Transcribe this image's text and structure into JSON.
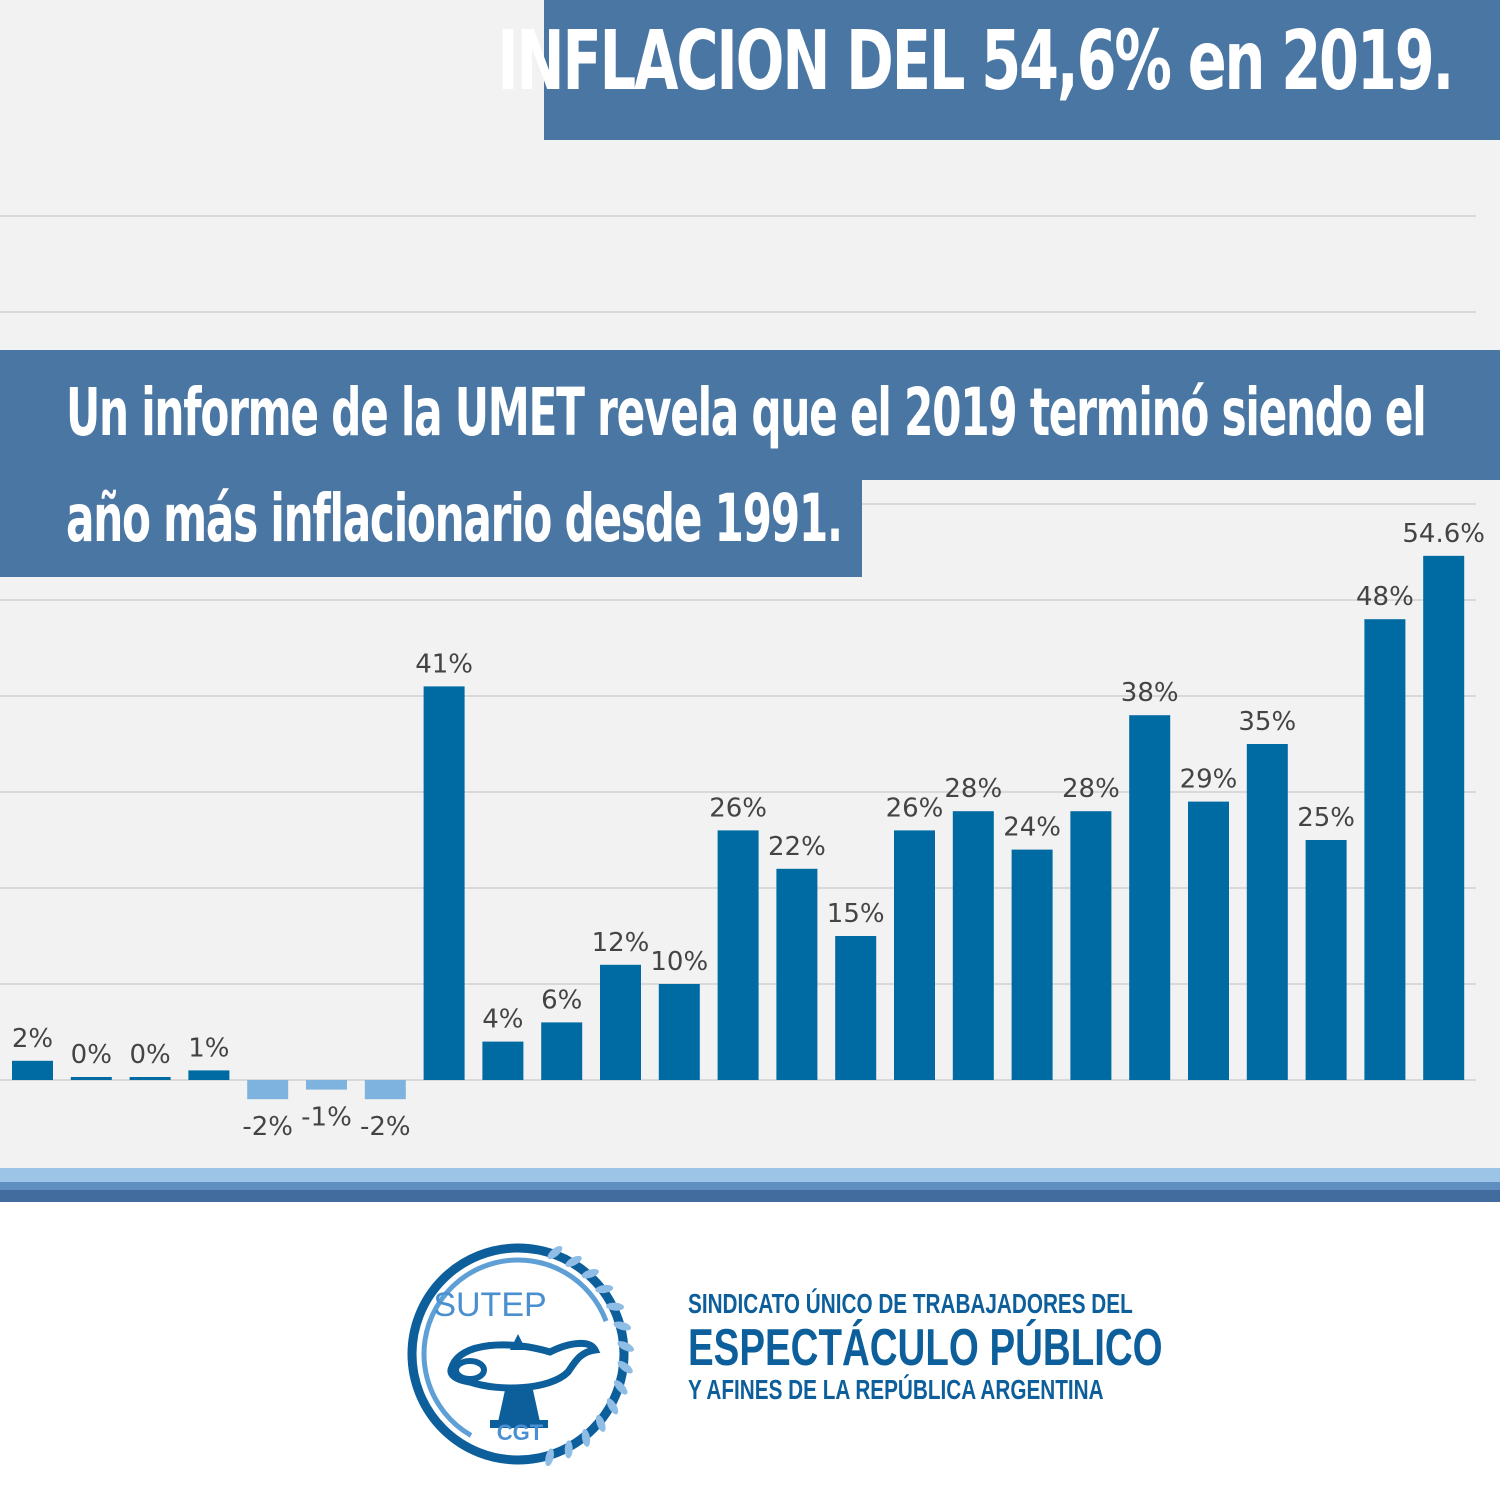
{
  "header": {
    "title": "INFLACION DEL 54,6% en 2019.",
    "subtitle_line_1": "Un informe de la UMET revela que el 2019 terminó siendo el",
    "subtitle_line_2": "año más inflacionario desde 1991."
  },
  "chart_data": {
    "type": "bar",
    "values": [
      2,
      0,
      0,
      1,
      -2,
      -1,
      -2,
      41,
      4,
      6,
      12,
      10,
      26,
      22,
      15,
      26,
      28,
      24,
      28,
      38,
      29,
      35,
      25,
      48,
      54.6
    ],
    "labels": [
      "2%",
      "0%",
      "0%",
      "1%",
      "-2%",
      "-1%",
      "-2%",
      "41%",
      "4%",
      "6%",
      "12%",
      "10%",
      "26%",
      "22%",
      "15%",
      "26%",
      "28%",
      "24%",
      "28%",
      "38%",
      "29%",
      "35%",
      "25%",
      "48%",
      "54.6%"
    ],
    "grid": true,
    "colors": {
      "positive": "#006aa3",
      "negative": "#7fb3df",
      "gridline": "#d9d9d9"
    }
  },
  "colors": {
    "banner": "#4a76a3",
    "brand": "#0d5f9c"
  },
  "logo": {
    "top_text": "SUTEP",
    "bottom_text": "CGT",
    "icon": "oil-lamp-laurel-logo-icon"
  },
  "organization": {
    "line_1": "SINDICATO ÚNICO DE TRABAJADORES DEL",
    "line_2": "ESPECTÁCULO PÚBLICO",
    "line_3": "Y AFINES DE LA REPÚBLICA ARGENTINA"
  }
}
